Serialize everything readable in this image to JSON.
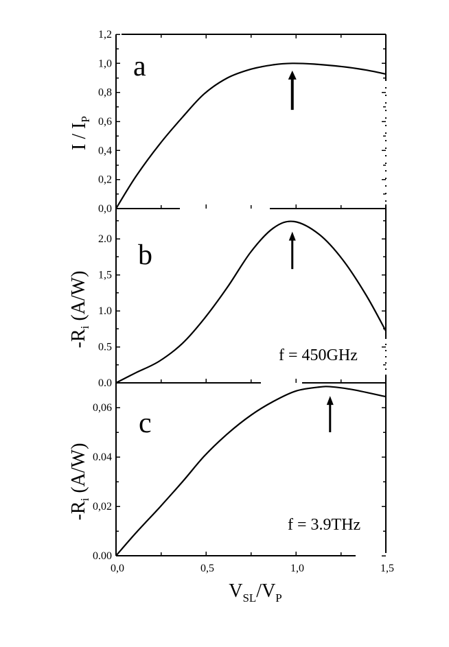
{
  "figure": {
    "xlabel_parts": [
      {
        "t": "V"
      },
      {
        "t": "SL",
        "sub": true
      },
      {
        "t": "/V"
      },
      {
        "t": "P",
        "sub": true
      }
    ],
    "panels": [
      {
        "letter": "a",
        "ylabel_parts": [
          {
            "t": "I / I"
          },
          {
            "t": "P",
            "sub": true
          }
        ],
        "annotation_text": ""
      },
      {
        "letter": "b",
        "ylabel_parts": [
          {
            "t": "-R"
          },
          {
            "t": "i",
            "sub": true
          },
          {
            "t": " (A/W)"
          }
        ],
        "annotation_text": "f = 450GHz"
      },
      {
        "letter": "c",
        "ylabel_parts": [
          {
            "t": "-R"
          },
          {
            "t": "i",
            "sub": true
          },
          {
            "t": " (A/W)"
          }
        ],
        "annotation_text": "f = 3.9THz"
      }
    ]
  },
  "chart_data": [
    {
      "type": "line",
      "title": "a",
      "xlabel": "V_SL/V_P",
      "ylabel": "I / I_P",
      "xlim": [
        0,
        1.5
      ],
      "ylim": [
        0,
        1.2
      ],
      "grid": false,
      "legend": null,
      "x_ticks": [
        0,
        0.5,
        1.0,
        1.5
      ],
      "x_tick_labels": [
        "0,0",
        "0,5",
        "1,0",
        "1,5"
      ],
      "x_minor_ticks": [
        0.25,
        0.75,
        1.25
      ],
      "y_ticks": [
        0,
        0.2,
        0.4,
        0.6,
        0.8,
        1.0,
        1.2
      ],
      "y_tick_labels": [
        "0,0",
        "0,2",
        "0,4",
        "0,6",
        "0,8",
        "1,0",
        "1,2"
      ],
      "y_minor_ticks": [
        0.1,
        0.3,
        0.5,
        0.7,
        0.9,
        1.1
      ],
      "series": [
        {
          "name": "I/I_P",
          "x": [
            0,
            0.11,
            0.24,
            0.37,
            0.49,
            0.62,
            0.75,
            0.875,
            0.98,
            1.1,
            1.26,
            1.39,
            1.5
          ],
          "y": [
            0,
            0.22,
            0.44,
            0.63,
            0.79,
            0.9,
            0.96,
            0.99,
            1.0,
            0.995,
            0.977,
            0.954,
            0.926
          ]
        }
      ],
      "annotations": [
        {
          "type": "arrow",
          "x": 0.98,
          "y_from": 0.68,
          "y_to": 0.95,
          "label": "peak marker"
        }
      ]
    },
    {
      "type": "line",
      "title": "b",
      "xlabel": "V_SL/V_P",
      "ylabel": "-R_i (A/W)",
      "xlim": [
        0,
        1.5
      ],
      "ylim": [
        0,
        2.42
      ],
      "grid": false,
      "legend": null,
      "x_ticks": [
        0,
        0.5,
        1.0,
        1.5
      ],
      "x_minor_ticks": [
        0.25,
        0.75,
        1.25
      ],
      "y_ticks": [
        0,
        0.5,
        1.0,
        1.5,
        2.0
      ],
      "y_tick_labels": [
        "0.0",
        "0.5",
        "1.0",
        "1,5",
        "2.0"
      ],
      "y_minor_ticks": [
        0.25,
        0.75,
        1.25,
        1.75,
        2.25
      ],
      "series": [
        {
          "name": "-R_i (f = 450GHz)",
          "x": [
            0,
            0.11,
            0.24,
            0.37,
            0.49,
            0.62,
            0.75,
            0.875,
            0.99,
            1.13,
            1.26,
            1.39,
            1.5
          ],
          "y": [
            0,
            0.14,
            0.3,
            0.55,
            0.89,
            1.33,
            1.82,
            2.15,
            2.24,
            2.06,
            1.71,
            1.22,
            0.72
          ]
        }
      ],
      "annotations": [
        {
          "type": "arrow",
          "x": 0.98,
          "y_from": 1.58,
          "y_to": 2.1,
          "label": "peak marker"
        },
        {
          "type": "text",
          "text": "f = 450GHz"
        }
      ]
    },
    {
      "type": "line",
      "title": "c",
      "xlabel": "V_SL/V_P",
      "ylabel": "-R_i (A/W)",
      "xlim": [
        0,
        1.5
      ],
      "ylim": [
        0,
        0.07
      ],
      "grid": false,
      "legend": null,
      "x_ticks": [
        0,
        0.5,
        1.0,
        1.5
      ],
      "x_tick_labels": [
        "0,0",
        "0,5",
        "1,0",
        "1,5"
      ],
      "x_minor_ticks": [
        0.25,
        0.75,
        1.25
      ],
      "y_ticks": [
        0,
        0.02,
        0.04,
        0.06
      ],
      "y_tick_labels": [
        "0.00",
        "0,02",
        "0.04",
        "0,06"
      ],
      "y_minor_ticks": [
        0.01,
        0.03,
        0.05
      ],
      "series": [
        {
          "name": "-R_i (f = 3.9THz)",
          "x": [
            0,
            0.11,
            0.24,
            0.37,
            0.49,
            0.62,
            0.75,
            0.875,
            1.0,
            1.13,
            1.2,
            1.32,
            1.5
          ],
          "y": [
            0,
            0.0092,
            0.0194,
            0.03,
            0.0403,
            0.0494,
            0.0569,
            0.0625,
            0.0667,
            0.0683,
            0.0684,
            0.0672,
            0.0644
          ]
        }
      ],
      "annotations": [
        {
          "type": "arrow",
          "x": 1.19,
          "y_from": 0.05,
          "y_to": 0.0647,
          "label": "peak marker"
        },
        {
          "type": "text",
          "text": "f = 3.9THz"
        }
      ]
    }
  ]
}
